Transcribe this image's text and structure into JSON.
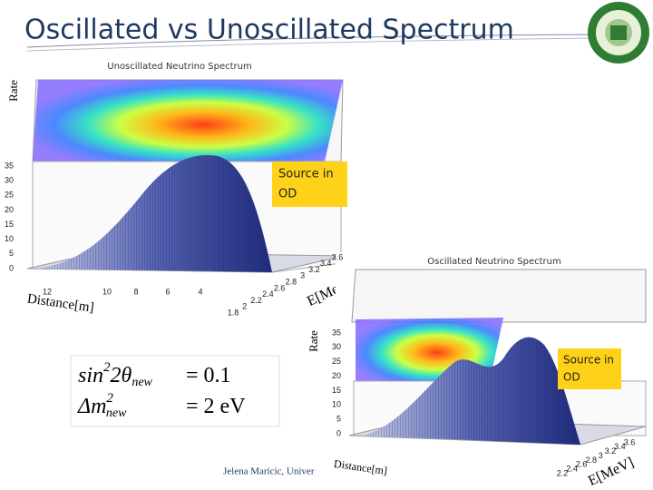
{
  "title": "Oscillated vs Unoscillated Spectrum",
  "plots": [
    {
      "title": "Unoscillated Neutrino Spectrum",
      "y_label": "Rate",
      "y_ticks": [
        "0",
        "5",
        "10",
        "15",
        "20",
        "25",
        "30",
        "35"
      ],
      "distance_ticks": [
        "12",
        "10",
        "8",
        "6",
        "4"
      ],
      "energy_ticks": [
        "1.8",
        "2",
        "2.2",
        "2.4",
        "2.6",
        "2.8",
        "3",
        "3.2",
        "3.4",
        "3.6"
      ],
      "distance_label": "Distance[m]",
      "energy_label": "E[MeV]",
      "note": [
        "Source in",
        "OD"
      ]
    },
    {
      "title": "Oscillated Neutrino Spectrum",
      "y_label": "Rate",
      "y_ticks": [
        "0",
        "5",
        "10",
        "15",
        "20",
        "25",
        "30",
        "35"
      ],
      "energy_ticks": [
        "2.2",
        "2.4",
        "2.6",
        "2.8",
        "3",
        "3.2",
        "3.4",
        "3.6"
      ],
      "distance_label": "Distance[m]",
      "energy_label": "E[MeV]",
      "note": [
        "Source in",
        "OD"
      ]
    }
  ],
  "formula": [
    {
      "fn": "sin",
      "sup": "2",
      "arg": "2θ",
      "sub": "new",
      "rhs": "= 0.1"
    },
    {
      "fn": "Δm",
      "sup": "2",
      "arg": "",
      "sub": "new",
      "rhs": "= 2 eV"
    }
  ],
  "footer": "Jelena Maricic, Univer"
}
